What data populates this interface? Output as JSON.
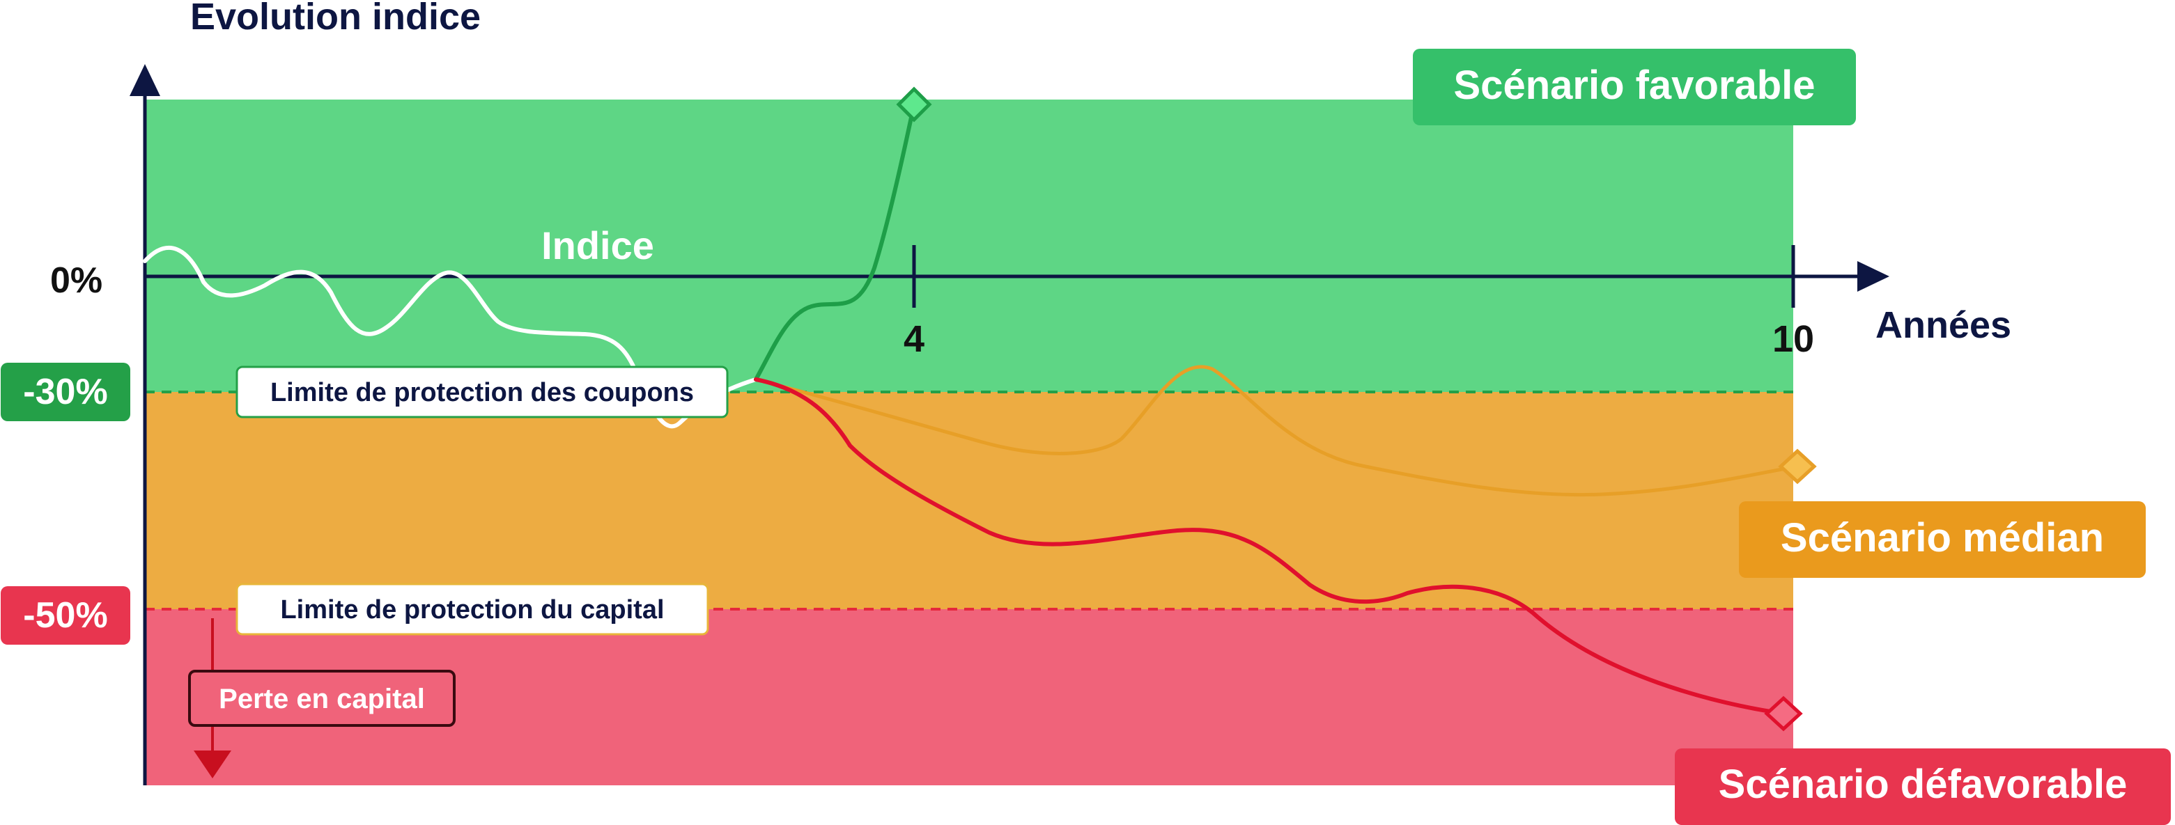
{
  "title": "Evolution indice",
  "x_axis": {
    "label": "Années",
    "ticks": [
      "4",
      "10"
    ]
  },
  "y_axis": {
    "zero_label": "0%"
  },
  "thresholds": [
    {
      "label": "-30%",
      "line_label": "Limite de protection des coupons",
      "color": "#24a048"
    },
    {
      "label": "-50%",
      "line_label": "Limite de protection du capital",
      "color": "#e5273c"
    }
  ],
  "index_label": "Indice",
  "loss_label": "Perte en capital",
  "scenarios": {
    "favorable": {
      "label": "Scénario favorable",
      "color": "#35c06a",
      "zone_color": "#5ed685"
    },
    "median": {
      "label": "Scénario médian",
      "color": "#ea9a1d",
      "zone_color": "#edac42"
    },
    "defavorable": {
      "label": "Scénario défavorable",
      "color": "#e8354f",
      "zone_color": "#f0637a"
    }
  },
  "colors": {
    "axis": "#0d1642",
    "index_line": "#ffffff",
    "favorable_line": "#1e9e48",
    "median_line": "#e79f27",
    "defavorable_line": "#e0102d"
  }
}
